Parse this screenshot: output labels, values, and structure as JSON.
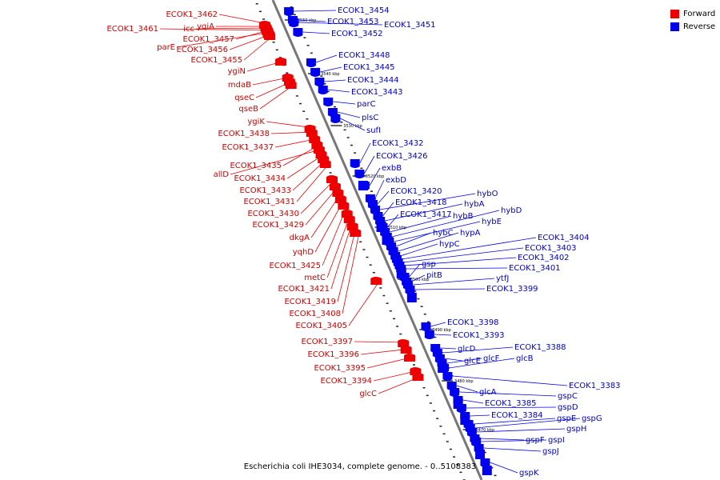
{
  "caption": "Escherichia coli IHE3034, complete genome. - 0..5108383",
  "legend": [
    {
      "label": "Forward",
      "color": "#ee0000"
    },
    {
      "label": "Reverse",
      "color": "#0000ee"
    }
  ],
  "colors": {
    "forward": "#ee0000",
    "reverse": "#0000ee",
    "backbone": "#777777"
  },
  "scale_labels": [
    "3550 kbp",
    "3540 kbp",
    "3530 kbp",
    "3520 kbp",
    "3510 kbp",
    "3500 kbp",
    "3490 kbp",
    "3480 kbp",
    "3470 kbp"
  ],
  "forward_genes": [
    "ECOK1_3462",
    "yqiA",
    "icc",
    "ECOK1_3457",
    "ECOK1_3461",
    "parE",
    "ECOK1_3456",
    "ECOK1_3455",
    "ygiN",
    "mdaB",
    "qseC",
    "qseB",
    "ygiK",
    "ECOK1_3438",
    "ECOK1_3437",
    "ECOK1_3435",
    "allD",
    "ECOK1_3434",
    "ECOK1_3433",
    "ECOK1_3431",
    "ECOK1_3430",
    "ECOK1_3429",
    "dkgA",
    "yqhD",
    "ECOK1_3425",
    "metC",
    "ECOK1_3421",
    "ECOK1_3419",
    "ECOK1_3408",
    "ECOK1_3405",
    "ECOK1_3397",
    "ECOK1_3396",
    "ECOK1_3395",
    "ECOK1_3394",
    "glcC"
  ],
  "reverse_genes": [
    "ECOK1_3454",
    "ECOK1_3453",
    "ECOK1_3451",
    "ECOK1_3452",
    "ECOK1_3448",
    "ECOK1_3445",
    "ECOK1_3444",
    "ECOK1_3443",
    "parC",
    "plsC",
    "sufI",
    "ECOK1_3432",
    "ECOK1_3426",
    "exbB",
    "exbD",
    "ECOK1_3420",
    "hybO",
    "ECOK1_3418",
    "hybA",
    "ECOK1_3417",
    "hybB",
    "hybD",
    "hybE",
    "hybC",
    "hypA",
    "hypC",
    "ECOK1_3404",
    "ECOK1_3403",
    "ECOK1_3402",
    "ECOK1_3401",
    "gsp",
    "pitB",
    "ytfJ",
    "ECOK1_3399",
    "ECOK1_3398",
    "ECOK1_3393",
    "glcD",
    "ECOK1_3388",
    "glcE",
    "glcF",
    "glcB",
    "ECOK1_3383",
    "glcA",
    "gspC",
    "ECOK1_3385",
    "gspD",
    "ECOK1_3384",
    "gspE",
    "gspG",
    "gspH",
    "gspF",
    "gspI",
    "gspJ",
    "gspK"
  ]
}
